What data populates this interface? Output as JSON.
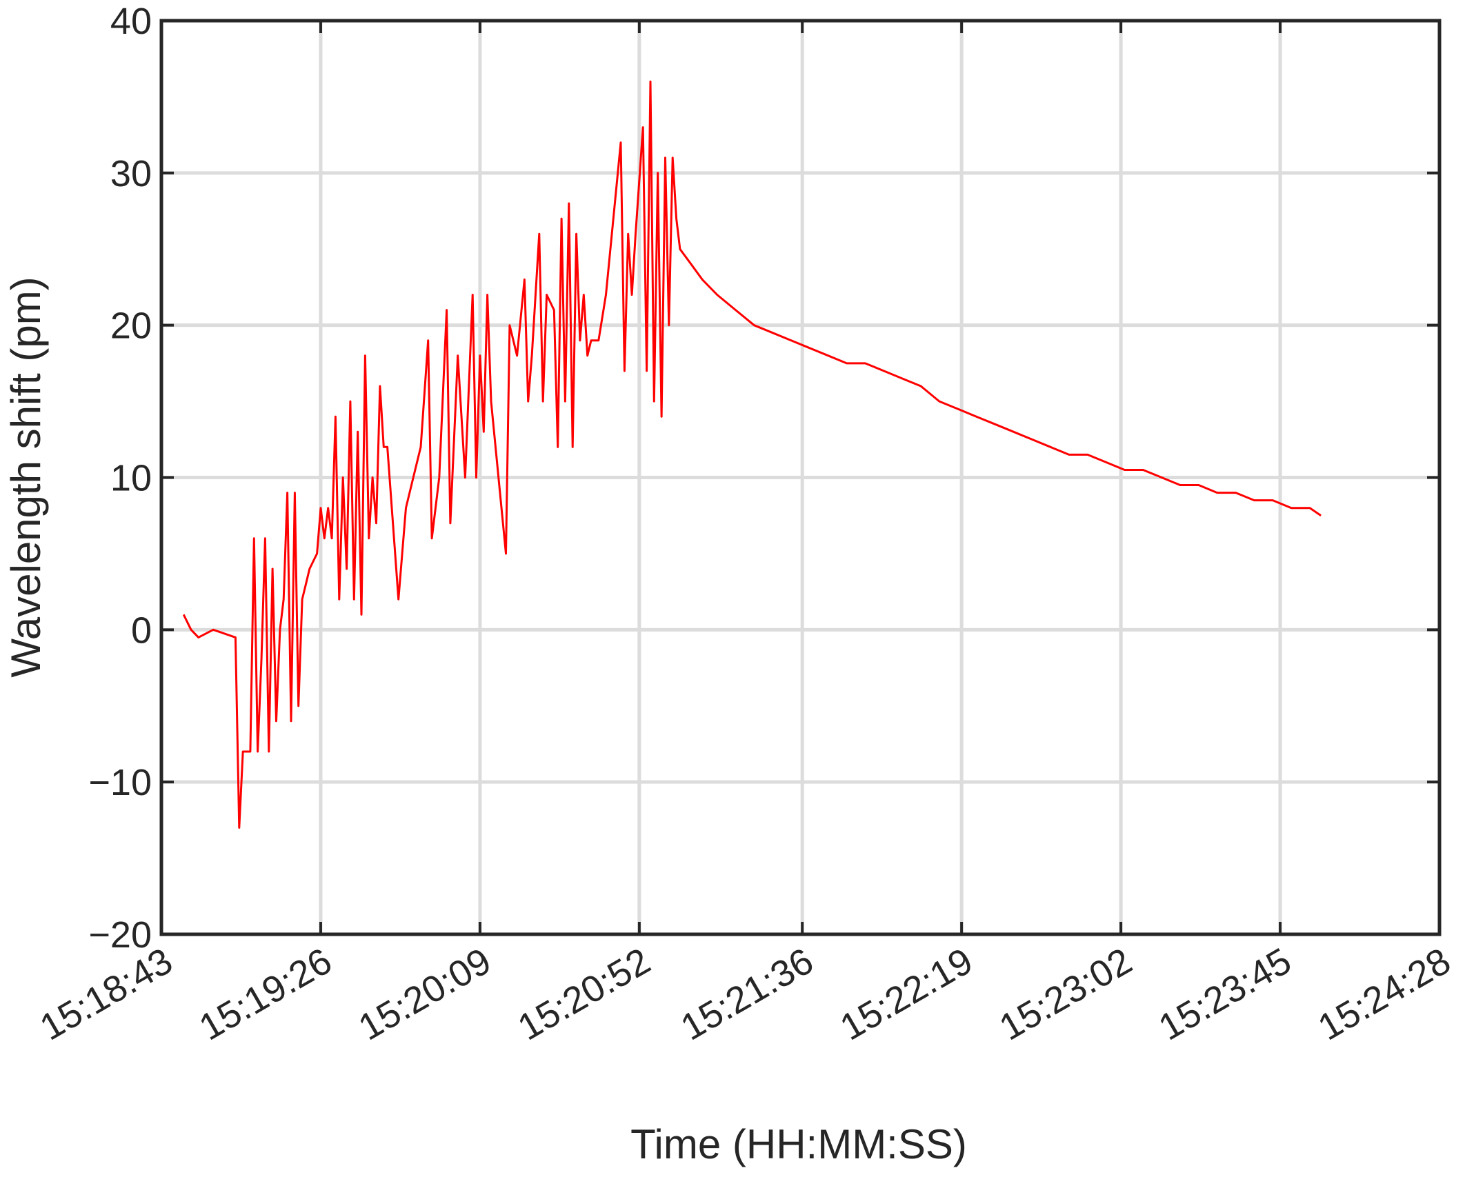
{
  "chart_data": {
    "type": "line",
    "xlabel": "Time (HH:MM:SS)",
    "ylabel": "Wavelength shift (pm)",
    "x": [
      "15:18:49",
      "15:18:51",
      "15:18:53",
      "15:18:57",
      "15:19:03",
      "15:19:04",
      "15:19:05",
      "15:19:07",
      "15:19:08",
      "15:19:09",
      "15:19:10",
      "15:19:11",
      "15:19:12",
      "15:19:13",
      "15:19:14",
      "15:19:15",
      "15:19:16",
      "15:19:17",
      "15:19:18",
      "15:19:19",
      "15:19:20",
      "15:19:21",
      "15:19:22",
      "15:19:23",
      "15:19:25",
      "15:19:26",
      "15:19:27",
      "15:19:28",
      "15:19:29",
      "15:19:30",
      "15:19:31",
      "15:19:32",
      "15:19:33",
      "15:19:34",
      "15:19:35",
      "15:19:36",
      "15:19:37",
      "15:19:38",
      "15:19:39",
      "15:19:40",
      "15:19:41",
      "15:19:42",
      "15:19:43",
      "15:19:44",
      "15:19:47",
      "15:19:49",
      "15:19:51",
      "15:19:53",
      "15:19:55",
      "15:19:56",
      "15:19:58",
      "15:20:00",
      "15:20:01",
      "15:20:03",
      "15:20:05",
      "15:20:07",
      "15:20:08",
      "15:20:09",
      "15:20:10",
      "15:20:11",
      "15:20:12",
      "15:20:16",
      "15:20:17",
      "15:20:19",
      "15:20:21",
      "15:20:22",
      "15:20:23",
      "15:20:25",
      "15:20:26",
      "15:20:27",
      "15:20:29",
      "15:20:30",
      "15:20:31",
      "15:20:32",
      "15:20:33",
      "15:20:34",
      "15:20:35",
      "15:20:36",
      "15:20:37",
      "15:20:38",
      "15:20:39",
      "15:20:41",
      "15:20:43",
      "15:20:47",
      "15:20:48",
      "15:20:49",
      "15:20:50",
      "15:20:51",
      "15:20:53",
      "15:20:54",
      "15:20:55",
      "15:20:56",
      "15:20:57",
      "15:20:58",
      "15:20:59",
      "15:21:00",
      "15:21:01",
      "15:21:02",
      "15:21:03",
      "15:21:06",
      "15:21:09",
      "15:21:13",
      "15:21:18",
      "15:21:23",
      "15:21:28",
      "15:21:33",
      "15:21:38",
      "15:21:43",
      "15:21:48",
      "15:21:53",
      "15:21:58",
      "15:22:03",
      "15:22:08",
      "15:22:13",
      "15:22:18",
      "15:22:23",
      "15:22:28",
      "15:22:33",
      "15:22:38",
      "15:22:43",
      "15:22:48",
      "15:22:53",
      "15:22:58",
      "15:23:03",
      "15:23:08",
      "15:23:13",
      "15:23:18",
      "15:23:23",
      "15:23:28",
      "15:23:33",
      "15:23:38",
      "15:23:43",
      "15:23:48",
      "15:23:53",
      "15:23:56"
    ],
    "series": [
      {
        "color": "#ff0000",
        "values": [
          1,
          0,
          -0.5,
          0,
          -0.5,
          -13,
          -8,
          -8,
          6,
          -8,
          -2,
          6,
          -8,
          4,
          -6,
          0,
          2,
          9,
          -6,
          9,
          -5,
          2,
          3,
          4,
          5,
          8,
          6,
          8,
          6,
          14,
          2,
          10,
          4,
          15,
          2,
          13,
          1,
          18,
          6,
          10,
          7,
          16,
          12,
          12,
          2,
          8,
          10,
          12,
          19,
          6,
          10,
          21,
          7,
          18,
          10,
          22,
          10,
          18,
          13,
          22,
          15,
          5,
          20,
          18,
          23,
          15,
          18,
          26,
          15,
          22,
          21,
          12,
          27,
          15,
          28,
          12,
          26,
          19,
          22,
          18,
          19,
          19,
          22,
          32,
          17,
          26,
          22,
          26,
          33,
          17,
          36,
          15,
          30,
          14,
          31,
          20,
          31,
          27,
          25,
          24,
          23,
          22,
          21,
          20,
          19.5,
          19,
          18.5,
          18,
          17.5,
          17.5,
          17,
          16.5,
          16,
          15,
          14.5,
          14,
          13.5,
          13,
          12.5,
          12,
          11.5,
          11.5,
          11,
          10.5,
          10.5,
          10,
          9.5,
          9.5,
          9,
          9,
          8.5,
          8.5,
          8,
          8,
          7.5
        ]
      }
    ],
    "xlim": [
      "15:18:43",
      "15:24:28"
    ],
    "xticks": [
      "15:18:43",
      "15:19:26",
      "15:20:09",
      "15:20:52",
      "15:21:36",
      "15:22:19",
      "15:23:02",
      "15:23:45",
      "15:24:28"
    ],
    "ylim": [
      -20,
      40
    ],
    "yticks": [
      {
        "value": -20,
        "label": "−20"
      },
      {
        "value": -10,
        "label": "−10"
      },
      0,
      10,
      20,
      30,
      40
    ],
    "grid": true
  }
}
